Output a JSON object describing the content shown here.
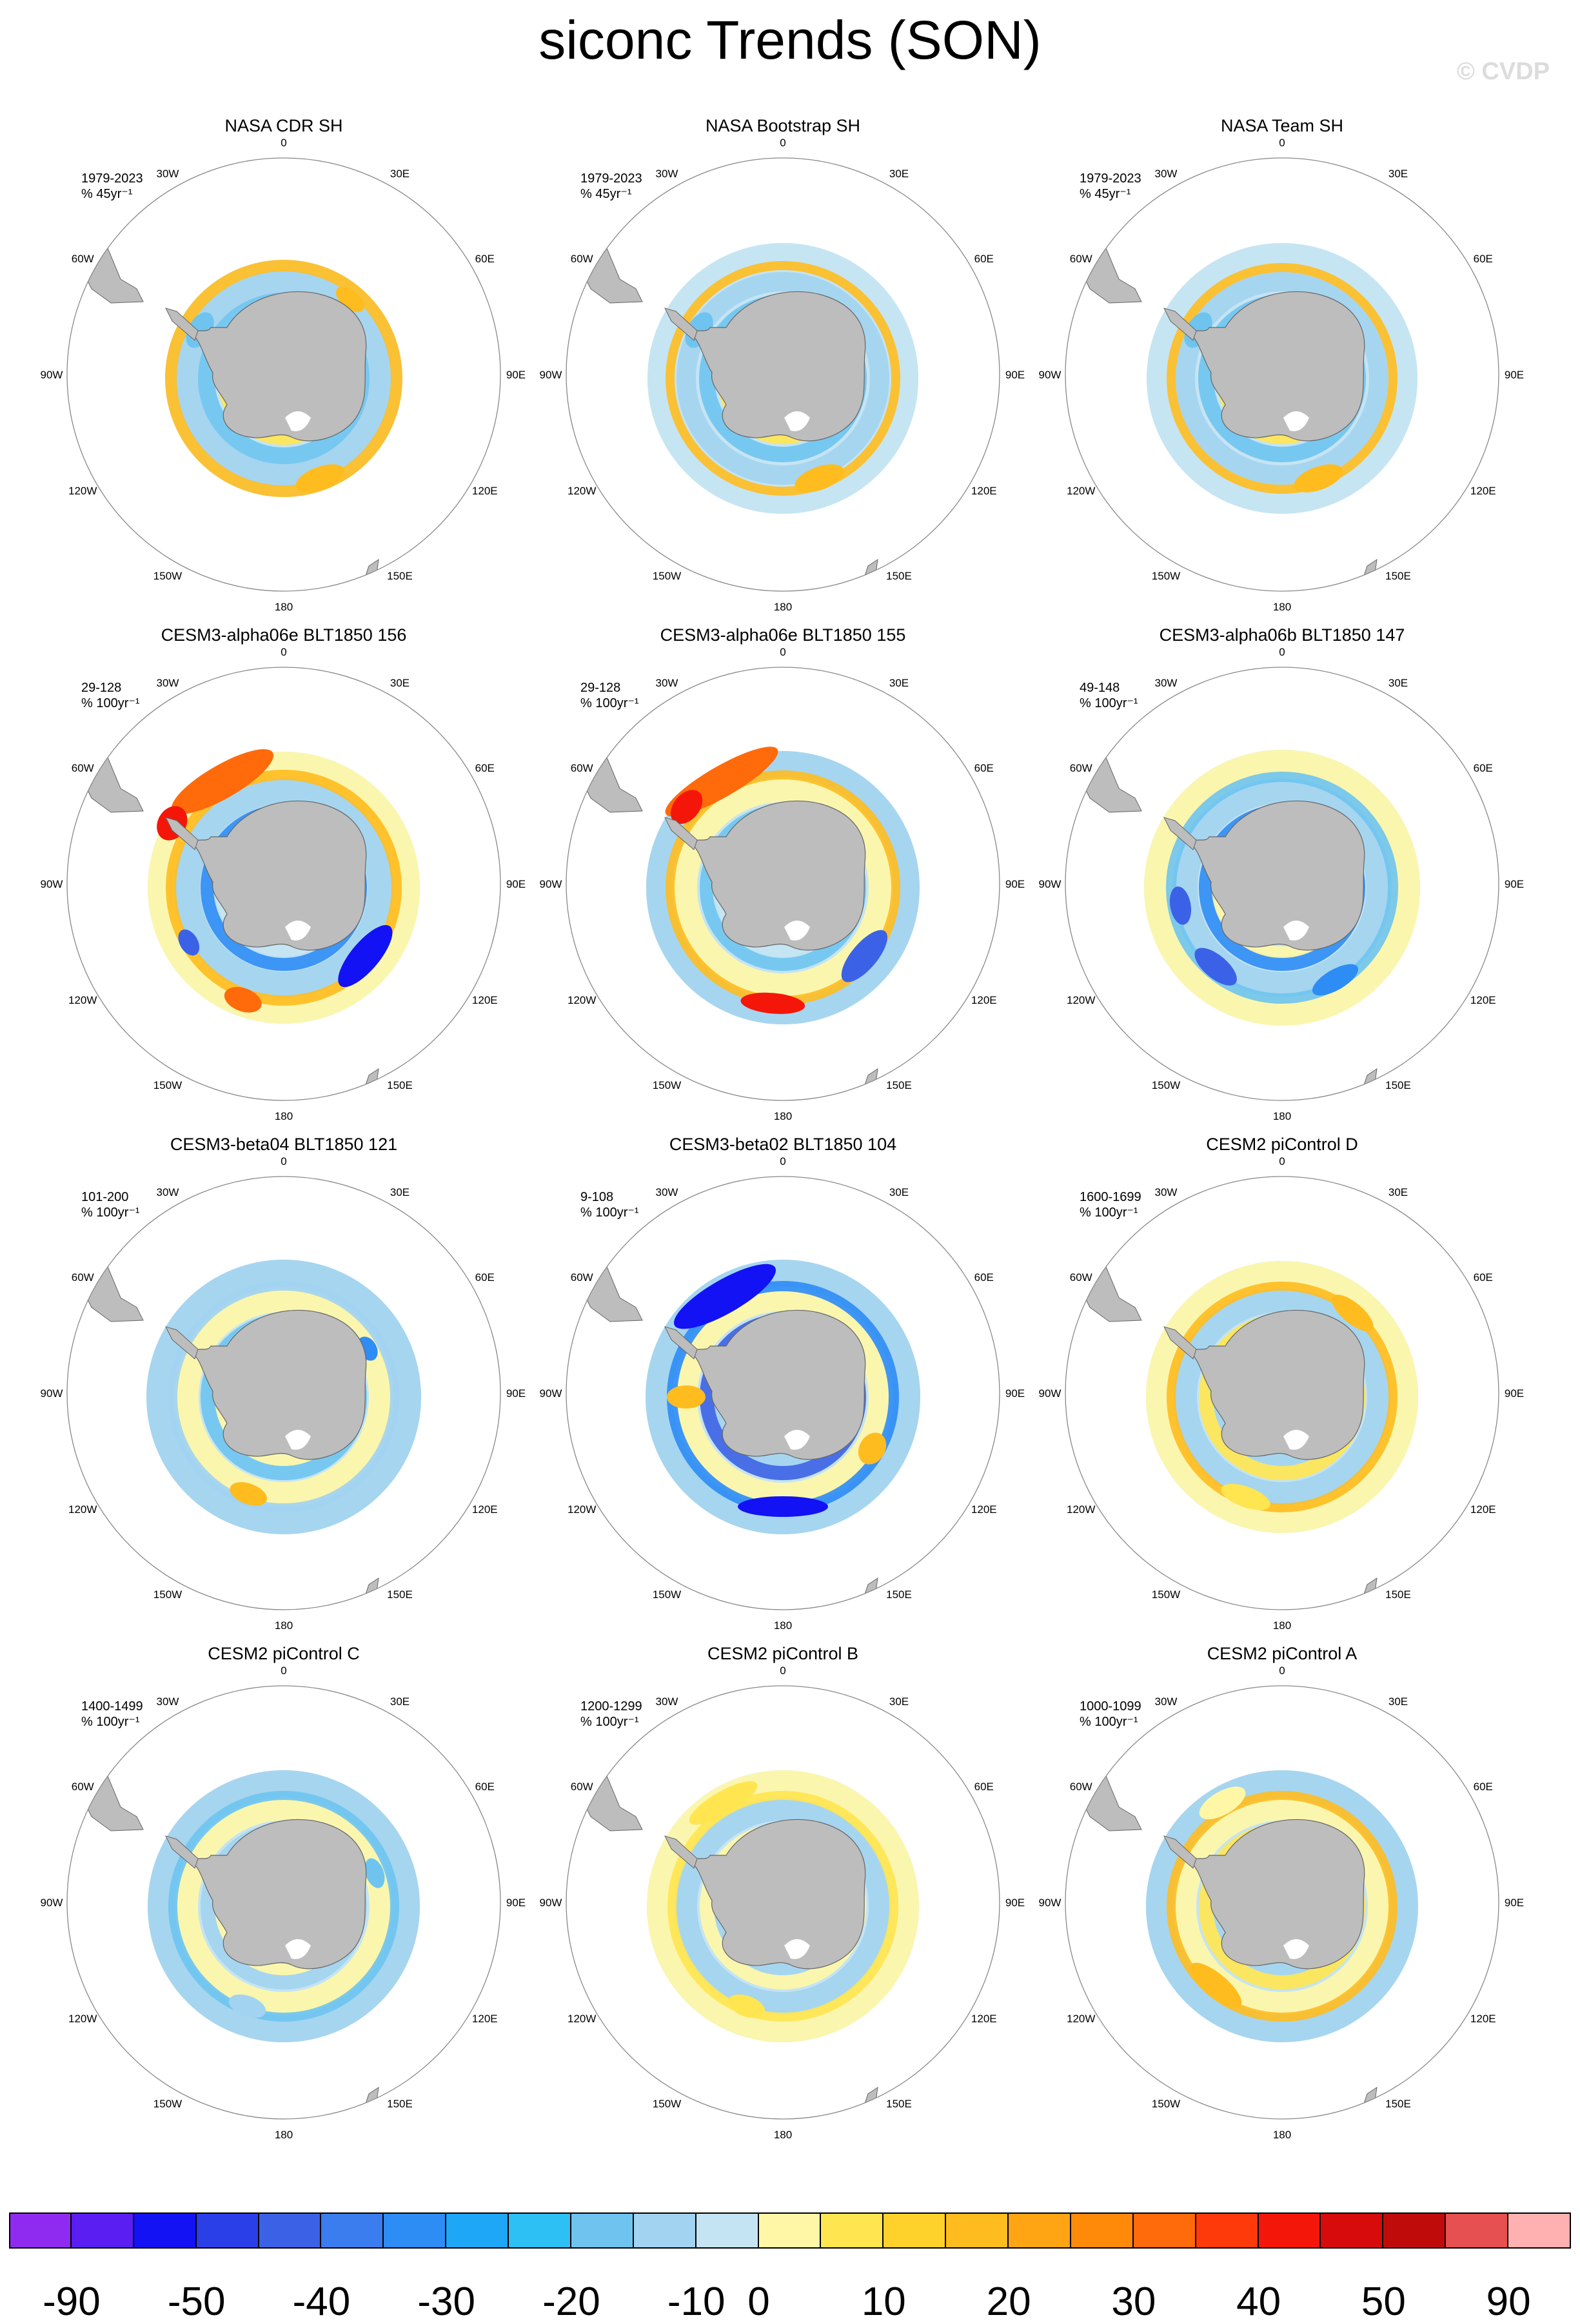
{
  "title": "siconc Trends (SON)",
  "watermark": "© CVDP",
  "colors": {
    "land": "#bdbdbd",
    "ring": "#888888"
  },
  "lon_labels": [
    "0",
    "30E",
    "60E",
    "90E",
    "120E",
    "150E",
    "180",
    "150W",
    "120W",
    "90W",
    "60W",
    "30W"
  ],
  "panels": [
    {
      "title": "NASA CDR SH",
      "period": "1979-2023",
      "units": "% 45yr⁻¹",
      "pattern": "obs1"
    },
    {
      "title": "NASA Bootstrap SH",
      "period": "1979-2023",
      "units": "% 45yr⁻¹",
      "pattern": "obs2"
    },
    {
      "title": "NASA Team SH",
      "period": "1979-2023",
      "units": "% 45yr⁻¹",
      "pattern": "obs3"
    },
    {
      "title": "CESM3-alpha06e BLT1850 156",
      "period": "29-128",
      "units": "% 100yr⁻¹",
      "pattern": "a156"
    },
    {
      "title": "CESM3-alpha06e BLT1850 155",
      "period": "29-128",
      "units": "% 100yr⁻¹",
      "pattern": "a155"
    },
    {
      "title": "CESM3-alpha06b BLT1850 147",
      "period": "49-148",
      "units": "% 100yr⁻¹",
      "pattern": "b147"
    },
    {
      "title": "CESM3-beta04 BLT1850 121",
      "period": "101-200",
      "units": "% 100yr⁻¹",
      "pattern": "c121"
    },
    {
      "title": "CESM3-beta02 BLT1850 104",
      "period": "9-108",
      "units": "% 100yr⁻¹",
      "pattern": "c104"
    },
    {
      "title": "CESM2 piControl D",
      "period": "1600-1699",
      "units": "% 100yr⁻¹",
      "pattern": "pD"
    },
    {
      "title": "CESM2 piControl C",
      "period": "1400-1499",
      "units": "% 100yr⁻¹",
      "pattern": "pC"
    },
    {
      "title": "CESM2 piControl B",
      "period": "1200-1299",
      "units": "% 100yr⁻¹",
      "pattern": "pB"
    },
    {
      "title": "CESM2 piControl A",
      "period": "1000-1099",
      "units": "% 100yr⁻¹",
      "pattern": "pA"
    }
  ],
  "colorbar": {
    "colors": [
      "#8f2bf0",
      "#5a1ef2",
      "#1212f5",
      "#2a3fe8",
      "#3b62e6",
      "#3b7cef",
      "#2e8cf5",
      "#1ea6f7",
      "#2cc0f5",
      "#6ec4ef",
      "#a2d3f0",
      "#c5e4f3",
      "#fff7a6",
      "#ffe650",
      "#ffd12a",
      "#ffbc1f",
      "#ffa514",
      "#ff8a0a",
      "#ff6a0a",
      "#ff3a0a",
      "#f5160a",
      "#d70b0b",
      "#c00b0b",
      "#e65050",
      "#ffb0b0"
    ],
    "labels": [
      "-90",
      "-50",
      "-40",
      "-30",
      "-20",
      "-10",
      "0",
      "10",
      "20",
      "30",
      "40",
      "50",
      "90"
    ]
  }
}
